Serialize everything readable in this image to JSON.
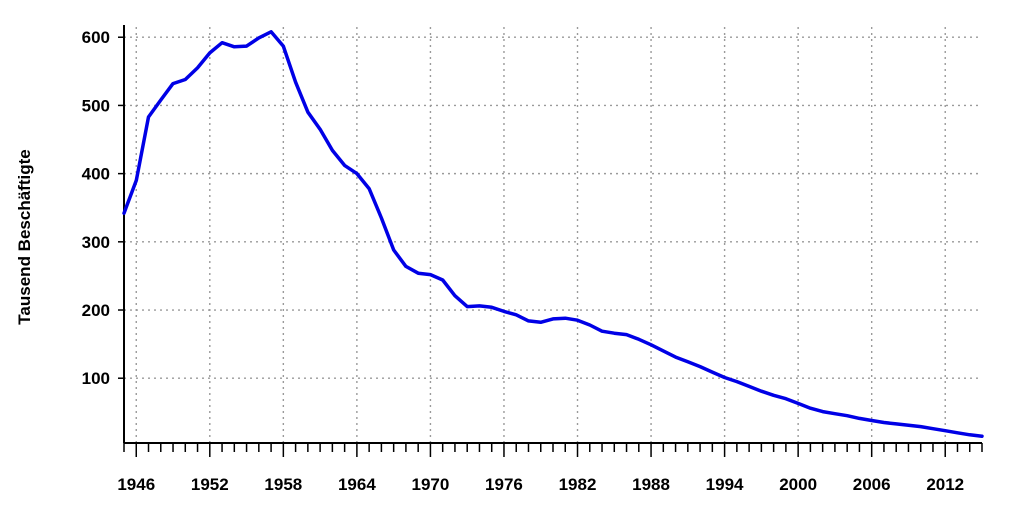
{
  "chart_data": {
    "type": "line",
    "title": "",
    "xlabel": "",
    "ylabel": "Tausend Beschäftigte",
    "xlim": [
      1945,
      2015
    ],
    "ylim": [
      5,
      615
    ],
    "xticks": [
      1946,
      1952,
      1958,
      1964,
      1970,
      1976,
      1982,
      1988,
      1994,
      2000,
      2006,
      2012
    ],
    "yticks": [
      100,
      200,
      300,
      400,
      500,
      600
    ],
    "grid": true,
    "legend": "none",
    "series": [
      {
        "color": "#0000e6",
        "x": [
          1945,
          1946,
          1947,
          1948,
          1949,
          1950,
          1951,
          1952,
          1953,
          1954,
          1955,
          1956,
          1957,
          1958,
          1959,
          1960,
          1961,
          1962,
          1963,
          1964,
          1965,
          1966,
          1967,
          1968,
          1969,
          1970,
          1971,
          1972,
          1973,
          1974,
          1975,
          1976,
          1977,
          1978,
          1979,
          1980,
          1981,
          1982,
          1983,
          1984,
          1985,
          1986,
          1987,
          1988,
          1989,
          1990,
          1991,
          1992,
          1993,
          1994,
          1995,
          1996,
          1997,
          1998,
          1999,
          2000,
          2001,
          2002,
          2003,
          2004,
          2005,
          2006,
          2007,
          2008,
          2009,
          2010,
          2011,
          2012,
          2013,
          2014,
          2015
        ],
        "y": [
          342,
          390,
          483,
          508,
          532,
          538,
          555,
          577,
          592,
          586,
          587,
          599,
          608,
          587,
          534,
          490,
          465,
          434,
          412,
          400,
          378,
          335,
          288,
          264,
          254,
          252,
          244,
          221,
          205,
          206,
          204,
          198,
          193,
          184,
          182,
          187,
          188,
          185,
          178,
          169,
          166,
          164,
          157,
          149,
          140,
          131,
          124,
          117,
          109,
          101,
          95,
          88,
          81,
          75,
          70,
          63,
          56,
          51,
          48,
          45,
          41,
          38,
          35,
          33,
          31,
          29,
          26,
          23,
          20,
          17,
          15
        ]
      }
    ]
  }
}
